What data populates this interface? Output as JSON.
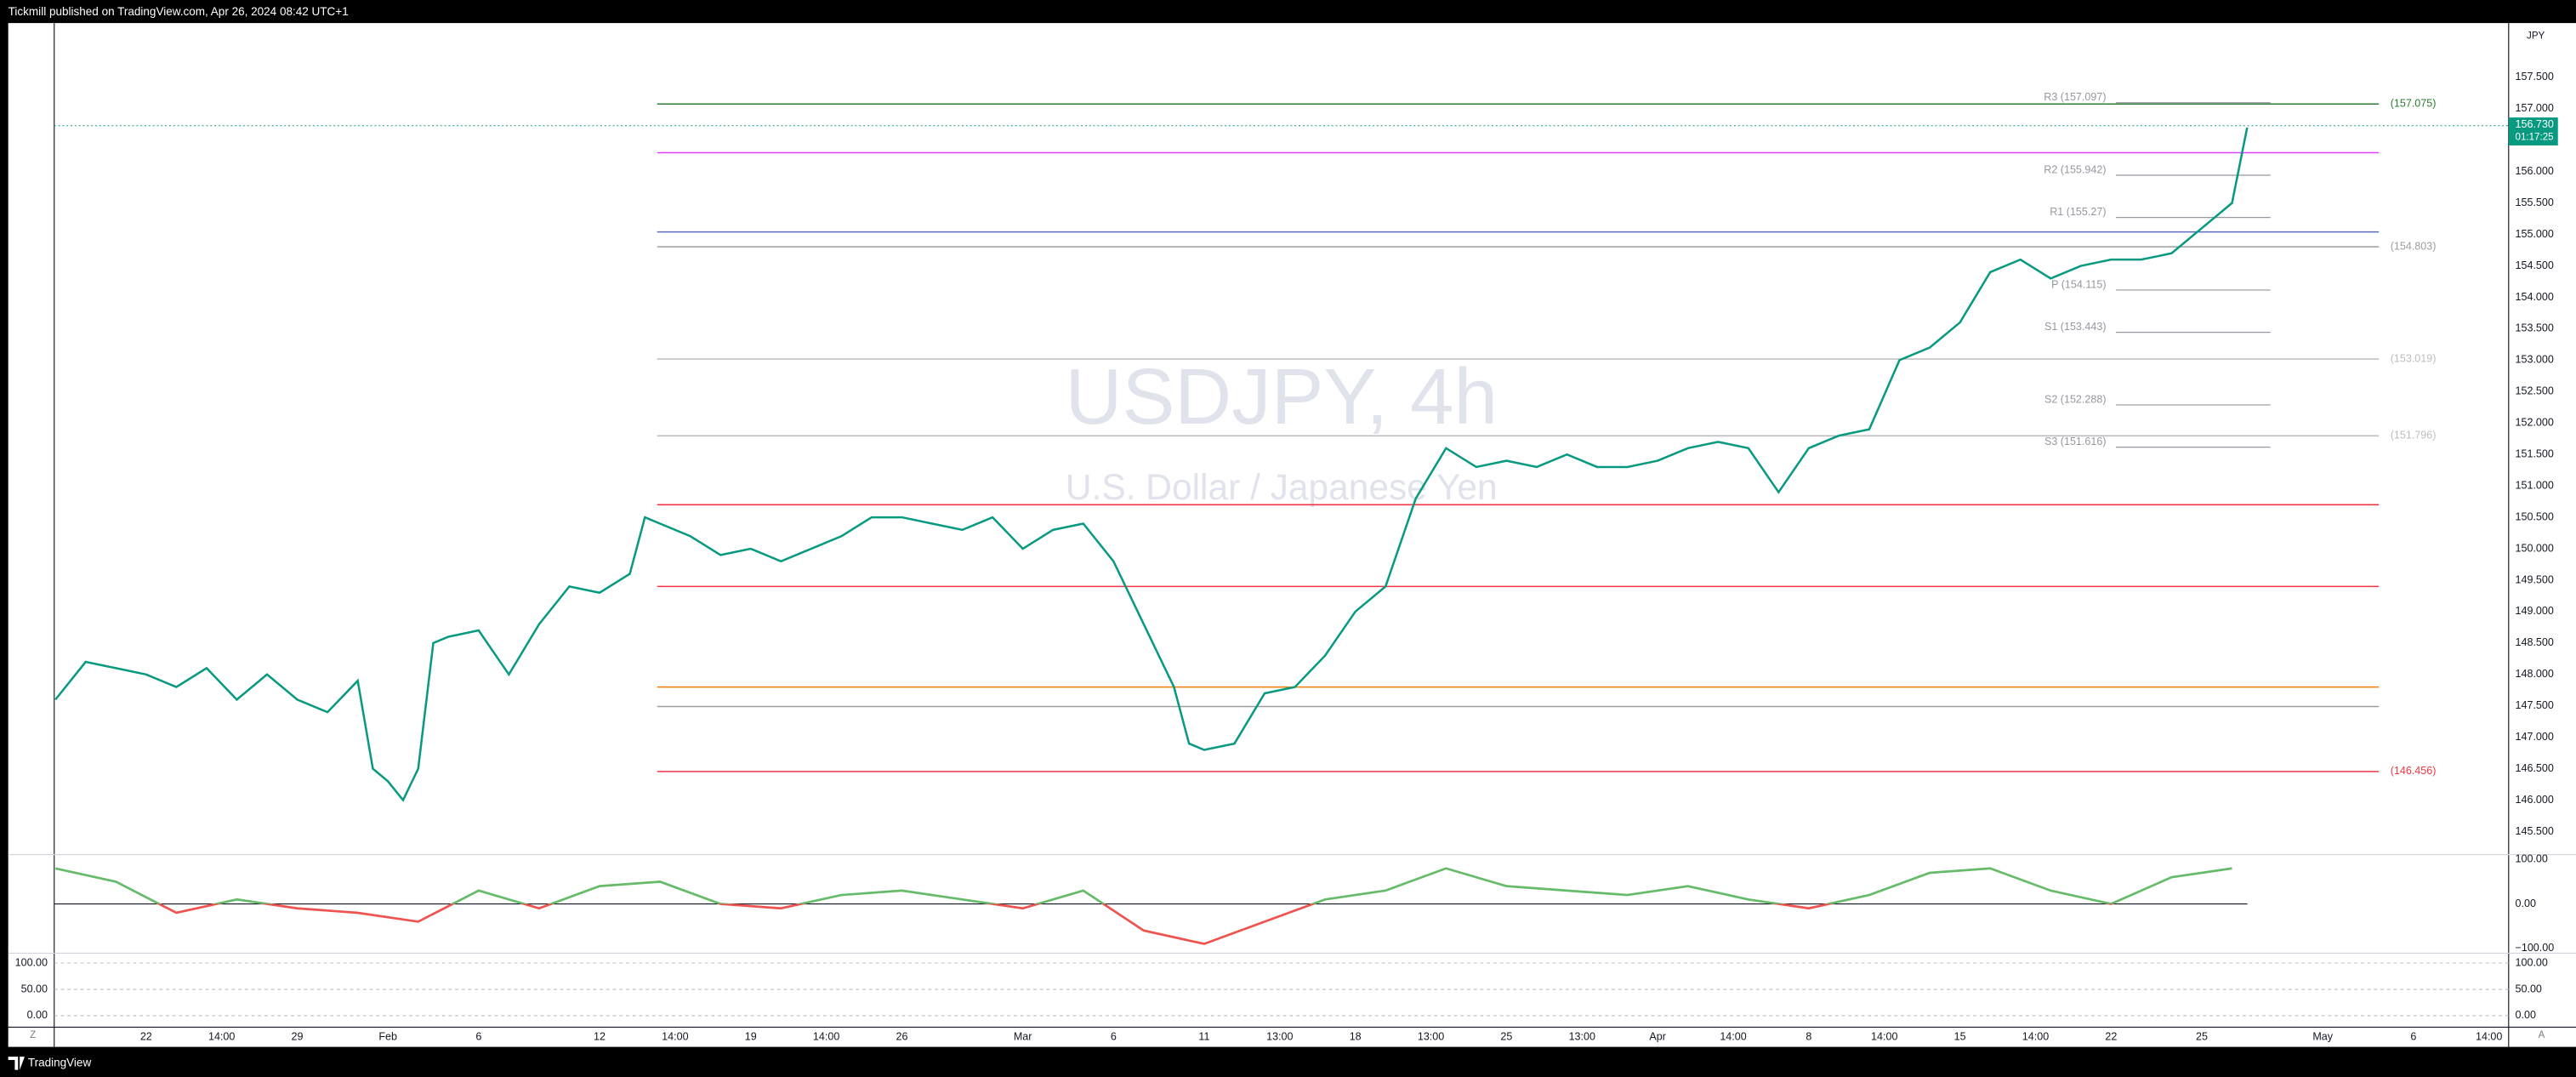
{
  "header": {
    "text": "Tickmill published on TradingView.com, Apr 26, 2024 08:42 UTC+1"
  },
  "footer": {
    "brand": "TradingView"
  },
  "controls": [
    "Z",
    "A"
  ],
  "chart_data": [
    {
      "type": "line",
      "title": "USDJPY, 4h",
      "subtitle": "U.S. Dollar / Japanese Yen",
      "y_axis_label": "JPY",
      "x": [
        -3,
        -2,
        -1,
        0,
        1,
        2,
        3,
        4,
        5,
        6,
        7,
        7.5,
        8,
        8.5,
        9,
        9.5,
        10,
        11,
        12,
        13,
        14,
        15,
        16,
        16.5,
        17,
        18,
        19,
        20,
        21,
        22,
        23,
        24,
        25,
        26,
        27,
        28,
        29,
        30,
        31,
        32,
        33,
        34,
        34.5,
        35,
        36,
        37,
        38,
        39,
        40,
        41,
        42,
        43,
        44,
        45,
        46,
        47,
        48,
        49,
        50,
        51,
        52,
        53,
        54,
        55,
        56,
        57,
        58,
        59,
        60,
        61,
        62,
        63,
        64,
        65,
        66,
        67,
        68,
        69,
        69.5
      ],
      "series": [
        {
          "color": "#089981",
          "values": [
            147.6,
            148.2,
            148.1,
            148.0,
            147.8,
            148.1,
            147.6,
            148.0,
            147.6,
            147.4,
            147.9,
            146.5,
            146.3,
            146.0,
            146.5,
            148.5,
            148.6,
            148.7,
            148.0,
            148.8,
            149.4,
            149.3,
            149.6,
            150.5,
            150.4,
            150.2,
            149.9,
            150.0,
            149.8,
            150.0,
            150.2,
            150.5,
            150.5,
            150.4,
            150.3,
            150.5,
            150.0,
            150.3,
            150.4,
            149.8,
            148.8,
            147.8,
            146.9,
            146.8,
            146.9,
            147.7,
            147.8,
            148.3,
            149.0,
            149.4,
            150.8,
            151.6,
            151.3,
            151.4,
            151.3,
            151.5,
            151.3,
            151.3,
            151.4,
            151.6,
            151.7,
            151.6,
            150.9,
            151.6,
            151.8,
            151.9,
            153.0,
            153.2,
            153.6,
            154.4,
            154.6,
            154.3,
            154.5,
            154.6,
            154.6,
            154.7,
            155.1,
            155.5,
            156.7
          ]
        }
      ],
      "xlim": [
        -3.04,
        78.15
      ],
      "xticks": [
        {
          "value": 0,
          "label": "22"
        },
        {
          "value": 2.5,
          "label": "14:00"
        },
        {
          "value": 5,
          "label": "29"
        },
        {
          "value": 8,
          "label": "Feb"
        },
        {
          "value": 11,
          "label": "6"
        },
        {
          "value": 15,
          "label": "12"
        },
        {
          "value": 17.5,
          "label": "14:00"
        },
        {
          "value": 20,
          "label": "19"
        },
        {
          "value": 22.5,
          "label": "14:00"
        },
        {
          "value": 25,
          "label": "26"
        },
        {
          "value": 29,
          "label": "Mar"
        },
        {
          "value": 32,
          "label": "6"
        },
        {
          "value": 35,
          "label": "11"
        },
        {
          "value": 37.5,
          "label": "13:00"
        },
        {
          "value": 40,
          "label": "18"
        },
        {
          "value": 42.5,
          "label": "13:00"
        },
        {
          "value": 45,
          "label": "25"
        },
        {
          "value": 47.5,
          "label": "13:00"
        },
        {
          "value": 50,
          "label": "Apr"
        },
        {
          "value": 52.5,
          "label": "14:00"
        },
        {
          "value": 55,
          "label": "8"
        },
        {
          "value": 57.5,
          "label": "14:00"
        },
        {
          "value": 60,
          "label": "15"
        },
        {
          "value": 62.5,
          "label": "14:00"
        },
        {
          "value": 65,
          "label": "22"
        },
        {
          "value": 68,
          "label": "25"
        },
        {
          "value": 72,
          "label": "May"
        },
        {
          "value": 75,
          "label": "6"
        },
        {
          "value": 77.5,
          "label": "14:00"
        }
      ],
      "ylim": [
        145.134,
        158.363
      ],
      "yticks": [
        {
          "value": 145.5,
          "label": "145.500"
        },
        {
          "value": 146,
          "label": "146.000"
        },
        {
          "value": 146.5,
          "label": "146.500"
        },
        {
          "value": 147,
          "label": "147.000"
        },
        {
          "value": 147.5,
          "label": "147.500"
        },
        {
          "value": 148,
          "label": "148.000"
        },
        {
          "value": 148.5,
          "label": "148.500"
        },
        {
          "value": 149,
          "label": "149.000"
        },
        {
          "value": 149.5,
          "label": "149.500"
        },
        {
          "value": 150,
          "label": "150.000"
        },
        {
          "value": 150.5,
          "label": "150.500"
        },
        {
          "value": 151,
          "label": "151.000"
        },
        {
          "value": 151.5,
          "label": "151.500"
        },
        {
          "value": 152,
          "label": "152.000"
        },
        {
          "value": 152.5,
          "label": "152.500"
        },
        {
          "value": 153,
          "label": "153.000"
        },
        {
          "value": 153.5,
          "label": "153.500"
        },
        {
          "value": 154,
          "label": "154.000"
        },
        {
          "value": 154.5,
          "label": "154.500"
        },
        {
          "value": 155,
          "label": "155.000"
        },
        {
          "value": 155.5,
          "label": "155.500"
        },
        {
          "value": 156,
          "label": "156.000"
        },
        {
          "value": 156.5,
          "label": "156.500"
        },
        {
          "value": 157,
          "label": "157.000"
        },
        {
          "value": 157.5,
          "label": "157.500"
        }
      ],
      "last_price": {
        "value": 156.73,
        "label": "156.730",
        "countdown": "01:17:25",
        "color": "#089981"
      },
      "pivots": [
        {
          "value": 157.097,
          "label": "R3 (157.097)"
        },
        {
          "value": 155.942,
          "label": "R2 (155.942)"
        },
        {
          "value": 155.27,
          "label": "R1 (155.27)"
        },
        {
          "value": 154.115,
          "label": "P (154.115)"
        },
        {
          "value": 153.443,
          "label": "S1 (153.443)"
        },
        {
          "value": 152.288,
          "label": "S2 (152.288)"
        },
        {
          "value": 151.616,
          "label": "S3 (151.616)"
        }
      ],
      "levels": [
        {
          "value": 157.075,
          "label": "(157.075)",
          "color": "#2e7d32"
        },
        {
          "value": 154.803,
          "label": "(154.803)",
          "color": "#9e9e9e"
        },
        {
          "value": 153.019,
          "label": "(153.019)",
          "color": "#bdbdbd"
        },
        {
          "value": 151.796,
          "label": "(151.796)",
          "color": "#bdbdbd"
        },
        {
          "value": 146.456,
          "label": "(146.456)",
          "color": "#f23645"
        },
        {
          "value": 156.3,
          "color": "#e040fb"
        },
        {
          "value": 155.04,
          "color": "#5c6bc0"
        },
        {
          "value": 150.7,
          "color": "#f23645"
        },
        {
          "value": 149.4,
          "color": "#f23645"
        },
        {
          "value": 147.8,
          "color": "#f57c00"
        },
        {
          "value": 147.49,
          "color": "#9e9e9e"
        }
      ],
      "grid": false
    },
    {
      "type": "line",
      "x": [
        -3,
        -1,
        1,
        3,
        5,
        7,
        9,
        11,
        13,
        15,
        17,
        19,
        21,
        23,
        25,
        27,
        29,
        31,
        33,
        35,
        37,
        39,
        41,
        43,
        45,
        47,
        49,
        51,
        53,
        55,
        57,
        59,
        61,
        63,
        65,
        67,
        69
      ],
      "series": [
        {
          "color": "#66bb6a",
          "values": [
            80,
            50,
            -20,
            10,
            -10,
            -20,
            -40,
            30,
            -10,
            40,
            50,
            0,
            -10,
            20,
            30,
            10,
            -10,
            30,
            -60,
            -90,
            -40,
            10,
            30,
            80,
            40,
            30,
            20,
            40,
            10,
            -10,
            20,
            70,
            80,
            30,
            0,
            60,
            80
          ]
        }
      ],
      "negative_color": "#ef5350",
      "xlim": [
        -3.04,
        78.15
      ],
      "ylim": [
        -111,
        111
      ],
      "yticks": [
        {
          "value": 100,
          "label": "100.00"
        },
        {
          "value": 0,
          "label": "0.00"
        },
        {
          "value": -100,
          "label": "−100.00"
        }
      ]
    },
    {
      "type": "oscillator",
      "ylim": [
        -21.9,
        118.75
      ],
      "yticks": [
        {
          "value": 100,
          "label": "100.00"
        },
        {
          "value": 50,
          "label": "50.00"
        },
        {
          "value": 0,
          "label": "0.00"
        }
      ]
    }
  ]
}
